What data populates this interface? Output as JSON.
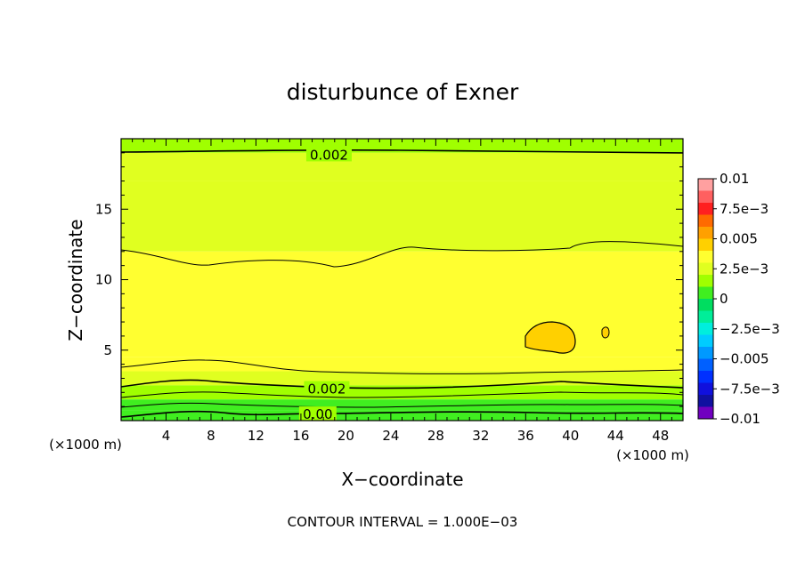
{
  "chart_data": {
    "type": "heatmap",
    "title": "disturbunce of Exner",
    "xlabel": "X−coordinate",
    "ylabel": "Z−coordinate",
    "x_unit": "(×1000 m)",
    "y_unit": "(×1000 m)",
    "xlim": [
      0,
      50
    ],
    "ylim": [
      0,
      20
    ],
    "x_ticks": [
      4,
      8,
      12,
      16,
      20,
      24,
      28,
      32,
      36,
      40,
      44,
      48
    ],
    "y_ticks": [
      5,
      10,
      15
    ],
    "footer": "CONTOUR INTERVAL = 1.000E−03",
    "contour_labels": [
      {
        "text": "0.002",
        "x": 18.5,
        "z": 18.9
      },
      {
        "text": "0.002",
        "x": 18.3,
        "z": 2.3
      },
      {
        "text": "0.00",
        "x": 17.5,
        "z": 0.5
      }
    ],
    "colorbar": {
      "labels": [
        "0.01",
        "7.5e−3",
        "0.005",
        "2.5e−3",
        "0",
        "−2.5e−3",
        "−0.005",
        "−7.5e−3",
        "−0.01"
      ],
      "levels": [
        0.01,
        0.009,
        0.008,
        0.007,
        0.006,
        0.005,
        0.004,
        0.003,
        0.002,
        0.001,
        0,
        -0.001,
        -0.002,
        -0.003,
        -0.004,
        -0.005,
        -0.006,
        -0.007,
        -0.008,
        -0.009,
        -0.01
      ],
      "colors": [
        "#ffa0a0",
        "#ff6060",
        "#ff2020",
        "#ff6a00",
        "#ffa000",
        "#ffd000",
        "#ffff30",
        "#e0ff20",
        "#a0ff00",
        "#40ee20",
        "#00dd60",
        "#00ee99",
        "#00eedd",
        "#00ccff",
        "#0099ff",
        "#0060ff",
        "#0030ff",
        "#1010dd",
        "#1010a0",
        "#7000c0"
      ]
    },
    "bands": [
      {
        "z_bottom": 19.0,
        "z_top": 20.0,
        "value": 0.00175
      },
      {
        "z_bottom": 17.0,
        "z_top": 19.0,
        "value": 0.0025
      },
      {
        "z_bottom": 12.0,
        "z_top": 17.0,
        "value": 0.0028
      },
      {
        "z_bottom": 4.5,
        "z_top": 12.0,
        "value": 0.0035
      },
      {
        "z_bottom": 3.5,
        "z_top": 4.5,
        "value": 0.0035
      },
      {
        "z_bottom": 2.5,
        "z_top": 3.5,
        "value": 0.0025
      },
      {
        "z_bottom": 1.5,
        "z_top": 2.5,
        "value": 0.0015
      },
      {
        "z_bottom": 0.7,
        "z_top": 1.5,
        "value": 0.001
      },
      {
        "z_bottom": 0.0,
        "z_top": 0.7,
        "value": 0.0005
      }
    ],
    "features": [
      {
        "name": "maximum",
        "x": 38.8,
        "z": 6.0,
        "value": 0.0045
      },
      {
        "name": "small-maximum",
        "x": 42.9,
        "z": 6.1,
        "value": 0.0042
      }
    ]
  }
}
